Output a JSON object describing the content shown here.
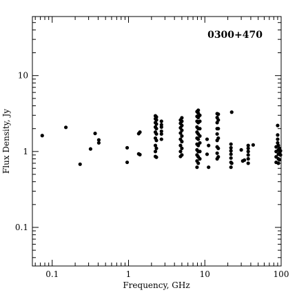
{
  "chart_data": {
    "type": "scatter",
    "title": "0300+470",
    "xlabel": "Frequency, GHz",
    "ylabel": "Flux Density, Jy",
    "xscale": "log",
    "yscale": "log",
    "xlim": [
      0.055,
      100
    ],
    "ylim": [
      0.031,
      60
    ],
    "grid": false,
    "xticks": [
      0.1,
      1,
      10,
      100
    ],
    "xtick_labels": [
      "0.1",
      "1",
      "10",
      "100"
    ],
    "yticks": [
      0.1,
      1,
      10
    ],
    "ytick_labels": [
      "0.1",
      "1",
      "10"
    ],
    "marker_color": "#000000",
    "series": [
      {
        "points": [
          [
            0.074,
            1.62
          ],
          [
            0.151,
            2.08
          ],
          [
            0.232,
            0.68
          ],
          [
            0.318,
            1.08
          ],
          [
            0.365,
            1.73
          ],
          [
            0.408,
            1.3
          ],
          [
            0.408,
            1.42
          ],
          [
            0.96,
            0.72
          ],
          [
            0.96,
            1.12
          ],
          [
            1.36,
            0.93
          ],
          [
            1.36,
            1.72
          ],
          [
            1.41,
            0.91
          ],
          [
            1.41,
            1.8
          ],
          [
            2.25,
            0.86
          ],
          [
            2.25,
            1.0
          ],
          [
            2.25,
            1.2
          ],
          [
            2.25,
            1.5
          ],
          [
            2.25,
            1.8
          ],
          [
            2.25,
            2.1
          ],
          [
            2.25,
            2.4
          ],
          [
            2.25,
            2.7
          ],
          [
            2.25,
            2.95
          ],
          [
            2.32,
            0.84
          ],
          [
            2.32,
            1.1
          ],
          [
            2.32,
            1.4
          ],
          [
            2.32,
            1.7
          ],
          [
            2.32,
            2.0
          ],
          [
            2.32,
            2.3
          ],
          [
            2.32,
            2.6
          ],
          [
            2.32,
            2.85
          ],
          [
            2.7,
            1.45
          ],
          [
            2.7,
            1.7
          ],
          [
            2.7,
            1.85
          ],
          [
            2.7,
            2.1
          ],
          [
            2.7,
            2.25
          ],
          [
            2.7,
            2.5
          ],
          [
            4.8,
            0.86
          ],
          [
            4.8,
            1.0
          ],
          [
            4.8,
            1.2
          ],
          [
            4.8,
            1.45
          ],
          [
            4.8,
            1.75
          ],
          [
            4.8,
            2.05
          ],
          [
            4.8,
            2.35
          ],
          [
            4.8,
            2.6
          ],
          [
            5.0,
            0.9
          ],
          [
            5.0,
            1.1
          ],
          [
            5.0,
            1.35
          ],
          [
            5.0,
            1.6
          ],
          [
            5.0,
            1.9
          ],
          [
            5.0,
            2.2
          ],
          [
            5.0,
            2.5
          ],
          [
            5.0,
            2.78
          ],
          [
            7.9,
            0.62
          ],
          [
            7.9,
            0.75
          ],
          [
            7.9,
            0.9
          ],
          [
            7.9,
            1.05
          ],
          [
            7.9,
            1.25
          ],
          [
            7.9,
            1.5
          ],
          [
            7.9,
            1.8
          ],
          [
            7.9,
            2.1
          ],
          [
            7.9,
            2.5
          ],
          [
            7.9,
            2.9
          ],
          [
            7.9,
            3.35
          ],
          [
            8.2,
            0.7
          ],
          [
            8.2,
            0.85
          ],
          [
            8.2,
            1.0
          ],
          [
            8.2,
            1.2
          ],
          [
            8.2,
            1.45
          ],
          [
            8.2,
            1.7
          ],
          [
            8.2,
            2.0
          ],
          [
            8.2,
            2.4
          ],
          [
            8.2,
            2.8
          ],
          [
            8.2,
            3.2
          ],
          [
            8.2,
            3.5
          ],
          [
            8.6,
            0.8
          ],
          [
            8.6,
            1.0
          ],
          [
            8.6,
            1.3
          ],
          [
            8.6,
            1.6
          ],
          [
            8.6,
            2.0
          ],
          [
            8.6,
            2.5
          ],
          [
            8.6,
            3.0
          ],
          [
            10.7,
            1.45
          ],
          [
            10.7,
            0.92
          ],
          [
            11.2,
            0.62
          ],
          [
            11.2,
            1.2
          ],
          [
            14.5,
            0.8
          ],
          [
            14.5,
            0.95
          ],
          [
            14.5,
            1.15
          ],
          [
            14.5,
            1.4
          ],
          [
            14.5,
            1.7
          ],
          [
            14.5,
            2.0
          ],
          [
            14.5,
            2.4
          ],
          [
            14.5,
            2.8
          ],
          [
            14.5,
            3.15
          ],
          [
            15.0,
            0.85
          ],
          [
            15.0,
            1.1
          ],
          [
            15.0,
            1.5
          ],
          [
            15.0,
            2.0
          ],
          [
            15.0,
            2.6
          ],
          [
            15.0,
            3.1
          ],
          [
            22.0,
            0.62
          ],
          [
            22.0,
            0.72
          ],
          [
            22.0,
            0.82
          ],
          [
            22.0,
            0.92
          ],
          [
            22.0,
            1.02
          ],
          [
            22.0,
            1.12
          ],
          [
            22.0,
            1.25
          ],
          [
            22.5,
            3.3
          ],
          [
            22.5,
            0.7
          ],
          [
            30.0,
            1.05
          ],
          [
            31.4,
            0.75
          ],
          [
            33.0,
            0.77
          ],
          [
            37.0,
            0.7
          ],
          [
            37.0,
            0.8
          ],
          [
            37.0,
            0.9
          ],
          [
            37.0,
            1.0
          ],
          [
            37.0,
            1.1
          ],
          [
            37.0,
            1.2
          ],
          [
            43.0,
            1.22
          ],
          [
            86.0,
            0.72
          ],
          [
            86.0,
            0.85
          ],
          [
            86.0,
            1.0
          ],
          [
            86.0,
            1.15
          ],
          [
            90.0,
            2.2
          ],
          [
            90.0,
            1.65
          ],
          [
            90.0,
            1.45
          ],
          [
            90.0,
            1.3
          ],
          [
            92.0,
            0.7
          ],
          [
            92.0,
            0.8
          ],
          [
            92.0,
            0.92
          ],
          [
            92.0,
            1.05
          ],
          [
            92.0,
            1.2
          ],
          [
            95.0,
            0.78
          ],
          [
            95.0,
            0.95
          ],
          [
            95.0,
            1.1
          ],
          [
            98.0,
            1.02
          ],
          [
            98.0,
            0.9
          ]
        ]
      }
    ]
  }
}
